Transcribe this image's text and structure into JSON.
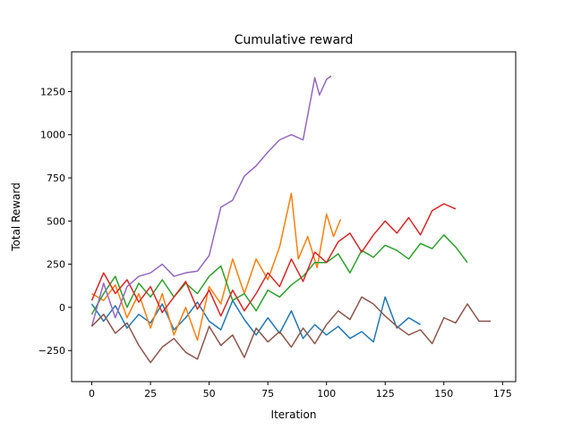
{
  "chart_data": {
    "type": "line",
    "title": "Cumulative reward",
    "xlabel": "Iteration",
    "ylabel": "Total Reward",
    "xlim": [
      -8.6,
      180.6
    ],
    "ylim": [
      -430,
      1480
    ],
    "xticks": [
      0,
      25,
      50,
      75,
      100,
      125,
      150,
      175
    ],
    "yticks": [
      -250,
      0,
      250,
      500,
      750,
      1000,
      1250
    ],
    "grid": false,
    "legend": "none",
    "series": [
      {
        "color": "#1f77b4",
        "points": [
          [
            0,
            20
          ],
          [
            5,
            -80
          ],
          [
            10,
            10
          ],
          [
            15,
            -120
          ],
          [
            20,
            -40
          ],
          [
            25,
            -90
          ],
          [
            30,
            20
          ],
          [
            35,
            -130
          ],
          [
            40,
            -60
          ],
          [
            45,
            30
          ],
          [
            50,
            -80
          ],
          [
            55,
            -130
          ],
          [
            60,
            40
          ],
          [
            65,
            -70
          ],
          [
            70,
            -160
          ],
          [
            75,
            -60
          ],
          [
            80,
            -150
          ],
          [
            85,
            -20
          ],
          [
            90,
            -180
          ],
          [
            95,
            -100
          ],
          [
            100,
            -160
          ],
          [
            105,
            -110
          ],
          [
            110,
            -180
          ],
          [
            115,
            -140
          ],
          [
            120,
            -200
          ],
          [
            125,
            60
          ],
          [
            130,
            -120
          ],
          [
            135,
            -60
          ],
          [
            140,
            -100
          ]
        ]
      },
      {
        "color": "#ff7f0e",
        "points": [
          [
            0,
            80
          ],
          [
            5,
            40
          ],
          [
            10,
            130
          ],
          [
            15,
            -60
          ],
          [
            20,
            80
          ],
          [
            25,
            -120
          ],
          [
            30,
            80
          ],
          [
            35,
            -160
          ],
          [
            40,
            0
          ],
          [
            45,
            -190
          ],
          [
            50,
            120
          ],
          [
            55,
            20
          ],
          [
            60,
            280
          ],
          [
            65,
            80
          ],
          [
            70,
            280
          ],
          [
            75,
            160
          ],
          [
            80,
            350
          ],
          [
            85,
            660
          ],
          [
            88,
            280
          ],
          [
            92,
            410
          ],
          [
            96,
            230
          ],
          [
            100,
            540
          ],
          [
            103,
            410
          ],
          [
            106,
            510
          ]
        ]
      },
      {
        "color": "#2ca02c",
        "points": [
          [
            0,
            -40
          ],
          [
            5,
            80
          ],
          [
            10,
            180
          ],
          [
            15,
            0
          ],
          [
            20,
            140
          ],
          [
            25,
            60
          ],
          [
            30,
            160
          ],
          [
            35,
            60
          ],
          [
            40,
            140
          ],
          [
            45,
            80
          ],
          [
            50,
            180
          ],
          [
            55,
            240
          ],
          [
            60,
            40
          ],
          [
            65,
            80
          ],
          [
            70,
            -20
          ],
          [
            75,
            100
          ],
          [
            80,
            60
          ],
          [
            85,
            130
          ],
          [
            90,
            180
          ],
          [
            95,
            260
          ],
          [
            100,
            260
          ],
          [
            105,
            310
          ],
          [
            110,
            200
          ],
          [
            115,
            330
          ],
          [
            120,
            290
          ],
          [
            125,
            360
          ],
          [
            130,
            330
          ],
          [
            135,
            280
          ],
          [
            140,
            370
          ],
          [
            145,
            340
          ],
          [
            150,
            420
          ],
          [
            155,
            350
          ],
          [
            160,
            260
          ]
        ]
      },
      {
        "color": "#d62728",
        "points": [
          [
            0,
            40
          ],
          [
            5,
            200
          ],
          [
            10,
            80
          ],
          [
            15,
            160
          ],
          [
            20,
            30
          ],
          [
            25,
            120
          ],
          [
            30,
            -30
          ],
          [
            35,
            60
          ],
          [
            40,
            150
          ],
          [
            45,
            -10
          ],
          [
            50,
            100
          ],
          [
            55,
            -50
          ],
          [
            60,
            100
          ],
          [
            65,
            -20
          ],
          [
            70,
            80
          ],
          [
            75,
            200
          ],
          [
            80,
            120
          ],
          [
            85,
            280
          ],
          [
            90,
            150
          ],
          [
            95,
            320
          ],
          [
            100,
            260
          ],
          [
            105,
            380
          ],
          [
            110,
            430
          ],
          [
            115,
            320
          ],
          [
            120,
            420
          ],
          [
            125,
            500
          ],
          [
            130,
            430
          ],
          [
            135,
            520
          ],
          [
            140,
            420
          ],
          [
            145,
            560
          ],
          [
            150,
            600
          ],
          [
            155,
            570
          ]
        ]
      },
      {
        "color": "#9467bd",
        "points": [
          [
            0,
            -110
          ],
          [
            5,
            140
          ],
          [
            10,
            -60
          ],
          [
            15,
            120
          ],
          [
            20,
            180
          ],
          [
            25,
            200
          ],
          [
            30,
            250
          ],
          [
            35,
            180
          ],
          [
            40,
            200
          ],
          [
            45,
            210
          ],
          [
            50,
            300
          ],
          [
            55,
            580
          ],
          [
            60,
            620
          ],
          [
            65,
            760
          ],
          [
            70,
            820
          ],
          [
            75,
            900
          ],
          [
            80,
            970
          ],
          [
            85,
            1000
          ],
          [
            90,
            970
          ],
          [
            95,
            1330
          ],
          [
            97,
            1230
          ],
          [
            100,
            1320
          ],
          [
            102,
            1340
          ]
        ]
      },
      {
        "color": "#8c564b",
        "points": [
          [
            0,
            -110
          ],
          [
            5,
            -40
          ],
          [
            10,
            -150
          ],
          [
            15,
            -90
          ],
          [
            20,
            -220
          ],
          [
            25,
            -320
          ],
          [
            30,
            -230
          ],
          [
            35,
            -180
          ],
          [
            40,
            -260
          ],
          [
            45,
            -300
          ],
          [
            50,
            -110
          ],
          [
            55,
            -220
          ],
          [
            60,
            -160
          ],
          [
            65,
            -290
          ],
          [
            70,
            -120
          ],
          [
            75,
            -200
          ],
          [
            80,
            -140
          ],
          [
            85,
            -230
          ],
          [
            90,
            -120
          ],
          [
            95,
            -210
          ],
          [
            100,
            -100
          ],
          [
            105,
            -20
          ],
          [
            110,
            -70
          ],
          [
            115,
            60
          ],
          [
            120,
            20
          ],
          [
            125,
            -50
          ],
          [
            130,
            -110
          ],
          [
            135,
            -160
          ],
          [
            140,
            -130
          ],
          [
            145,
            -210
          ],
          [
            150,
            -60
          ],
          [
            155,
            -90
          ],
          [
            160,
            20
          ],
          [
            165,
            -80
          ],
          [
            170,
            -80
          ]
        ]
      }
    ]
  }
}
